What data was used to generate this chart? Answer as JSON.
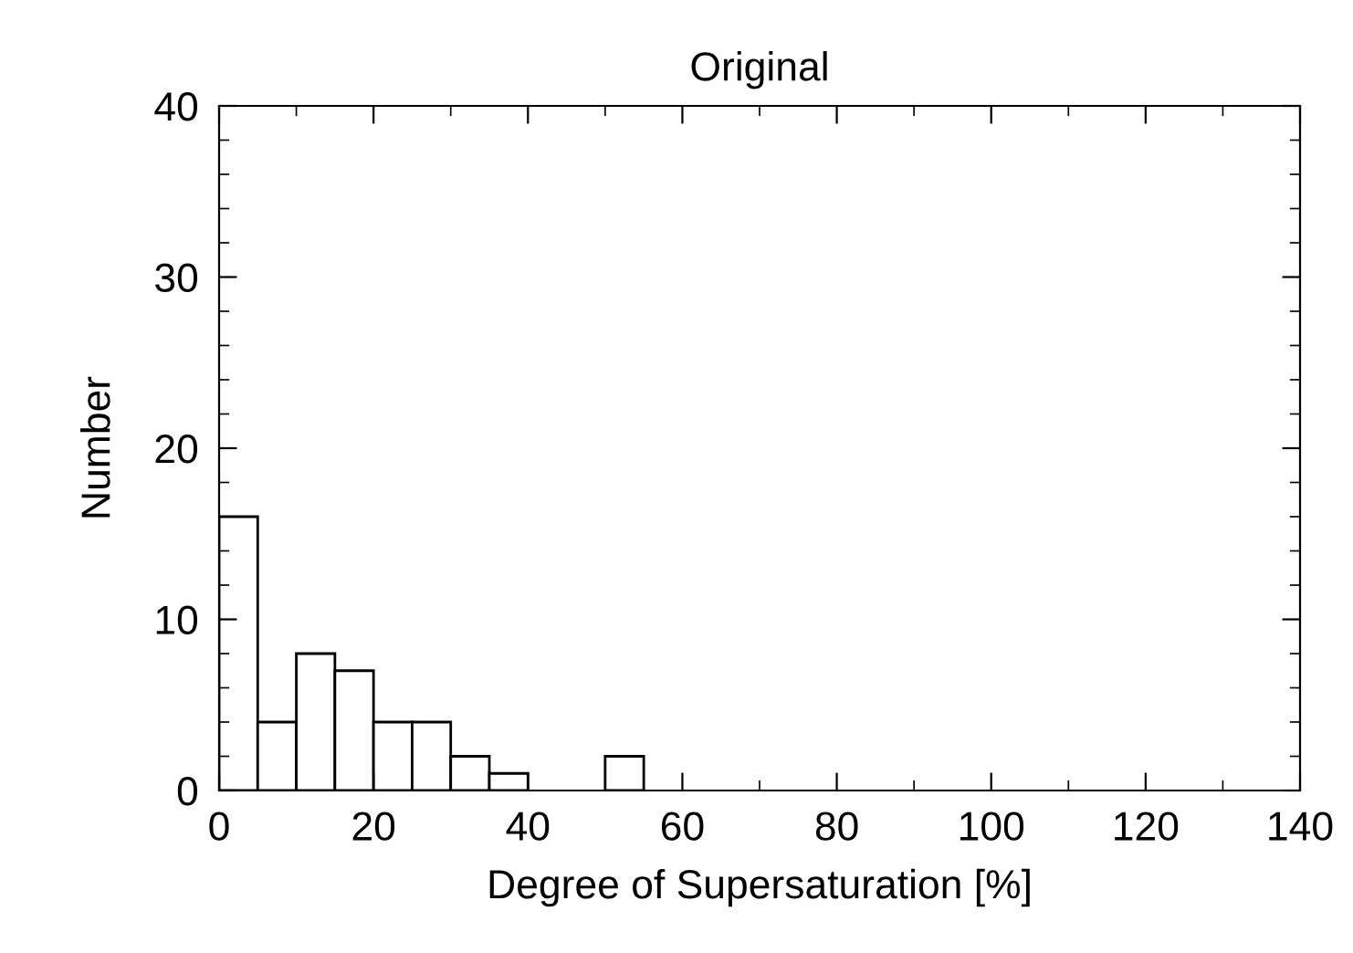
{
  "chart_data": {
    "type": "histogram",
    "title": "Original",
    "xlabel": "Degree of Supersaturation [%]",
    "ylabel": "Number",
    "bins": [
      0,
      5,
      10,
      15,
      20,
      25,
      30,
      35,
      40,
      45,
      50,
      55
    ],
    "values": [
      16,
      4,
      8,
      7,
      4,
      4,
      2,
      1,
      0,
      0,
      2
    ],
    "color": "#ffffff",
    "xlim": [
      0,
      140
    ],
    "xticks": [
      0,
      20,
      40,
      60,
      80,
      100,
      120,
      140
    ],
    "ylim": [
      0,
      40
    ],
    "yticks": [
      0,
      10,
      20,
      30,
      40
    ],
    "grid": false
  }
}
